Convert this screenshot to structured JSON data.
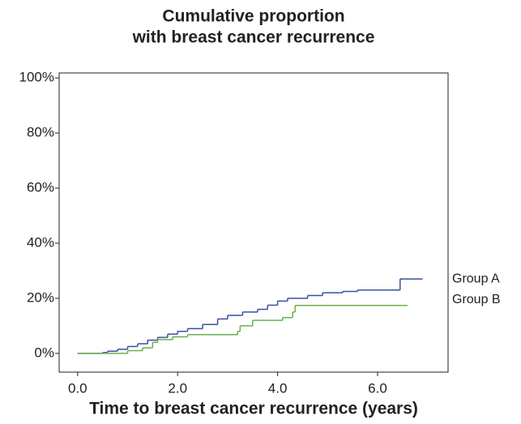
{
  "chart_data": {
    "type": "step",
    "title": [
      "Cumulative proportion",
      "with breast cancer recurrence"
    ],
    "x_label": "Time to breast cancer recurrence (years)",
    "xlim": [
      -0.37,
      7.41
    ],
    "ylim": [
      -6.8,
      101.8
    ],
    "xticks": [
      {
        "value": 0,
        "label": "0.0"
      },
      {
        "value": 2,
        "label": "2.0"
      },
      {
        "value": 4,
        "label": "4.0"
      },
      {
        "value": 6,
        "label": "6.0"
      }
    ],
    "yticks": [
      {
        "value": 0,
        "label": "0%"
      },
      {
        "value": 20,
        "label": "20%"
      },
      {
        "value": 40,
        "label": "40%"
      },
      {
        "value": 60,
        "label": "60%"
      },
      {
        "value": 80,
        "label": "80%"
      },
      {
        "value": 100,
        "label": "100%"
      }
    ],
    "legend": "right",
    "series": [
      {
        "name": "Group A",
        "color": "#3a4fa0",
        "x": [
          0,
          0.5,
          0.6,
          0.8,
          1.0,
          1.2,
          1.4,
          1.6,
          1.8,
          2.0,
          2.2,
          2.5,
          2.8,
          3.0,
          3.3,
          3.6,
          3.8,
          4.0,
          4.2,
          4.6,
          4.9,
          5.3,
          5.6,
          6.45,
          6.9
        ],
        "values": [
          0,
          0.3,
          0.8,
          1.5,
          2.5,
          3.5,
          4.8,
          5.8,
          7,
          8,
          9,
          10.5,
          12.5,
          13.8,
          15,
          16,
          17.5,
          19,
          20,
          21,
          22,
          22.5,
          23,
          27,
          27
        ]
      },
      {
        "name": "Group B",
        "color": "#6ab04c",
        "x": [
          0,
          1.0,
          1.3,
          1.5,
          1.6,
          1.9,
          2.2,
          3.2,
          3.25,
          3.5,
          4.1,
          4.3,
          4.35,
          6.6
        ],
        "values": [
          0,
          1,
          2,
          4,
          5,
          6,
          6.8,
          8,
          10,
          12,
          13,
          15,
          17.4,
          17.4
        ]
      }
    ]
  }
}
